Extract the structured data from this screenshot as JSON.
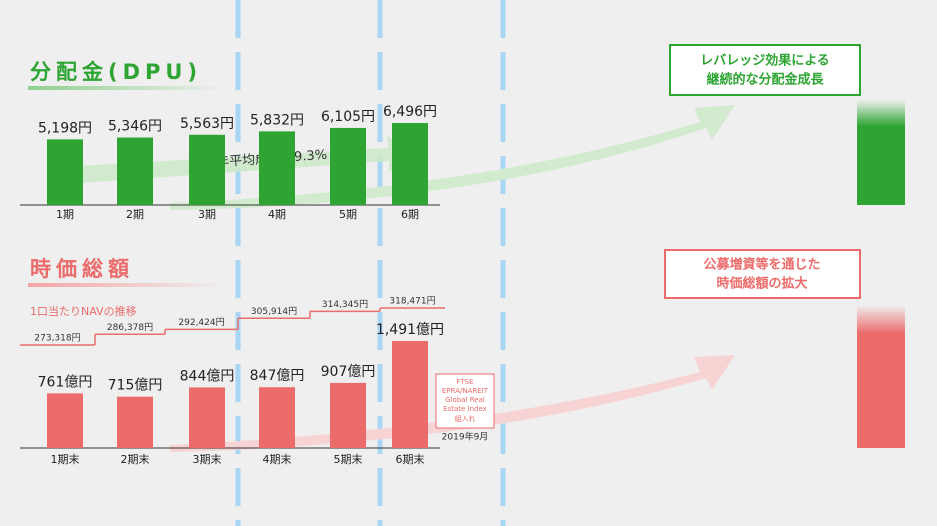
{
  "chart_data": [
    {
      "type": "bar",
      "title": "分配金(DPU)",
      "color": "#2ea533",
      "categories": [
        "1期",
        "2期",
        "3期",
        "4期",
        "5期",
        "6期"
      ],
      "values": [
        5198,
        5346,
        5563,
        5832,
        6105,
        6496
      ],
      "value_labels": [
        "5,198円",
        "5,346円",
        "5,563円",
        "5,832円",
        "6,105円",
        "6,496円"
      ],
      "annotation": "DPU年平均成長率9.3%",
      "callout": [
        "レバレッジ効果による",
        "継続的な分配金成長"
      ]
    },
    {
      "type": "bar",
      "title": "時価総額",
      "color": "#ec6b6b",
      "categories": [
        "1期末",
        "2期末",
        "3期末",
        "4期末",
        "5期末",
        "6期末"
      ],
      "values": [
        761,
        715,
        844,
        847,
        907,
        1491
      ],
      "value_labels": [
        "761億円",
        "715億円",
        "844億円",
        "847億円",
        "907億円",
        "1,491億円"
      ],
      "nav": {
        "name": "1口当たりNAVの推移",
        "color": "#ec6b6b",
        "values": [
          273318,
          286378,
          292424,
          305914,
          314345,
          318471
        ],
        "value_labels": [
          "273,318円",
          "286,378円",
          "292,424円",
          "305,914円",
          "314,345円",
          "318,471円"
        ]
      },
      "annotation": [
        "FTSE",
        "EPRA/NAREIT",
        "Global Real",
        "Estate Index",
        "組入れ"
      ],
      "annotation_date": "2019年9月",
      "callout": [
        "公募増資等を通じた",
        "時価総額の拡大"
      ]
    }
  ]
}
